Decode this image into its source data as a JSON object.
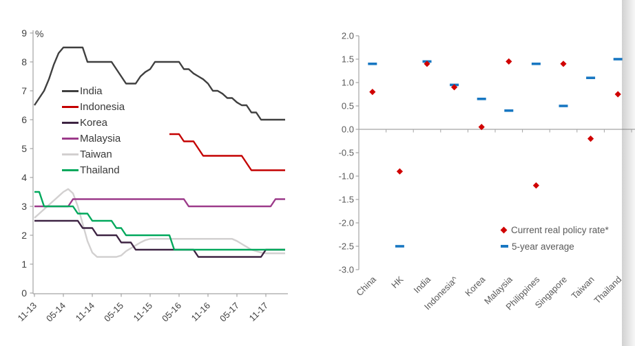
{
  "page": {
    "background": "#ffffff",
    "unit_label": "%"
  },
  "chart_data": [
    {
      "id": "policy-rates-by-month",
      "type": "line",
      "title": "",
      "ylabel": "%",
      "ylim": [
        0,
        9
      ],
      "yticks": [
        9,
        8,
        7,
        6,
        5,
        4,
        3,
        2,
        1,
        0
      ],
      "ytick_labels": [
        "9",
        "8",
        "7",
        "6",
        "5",
        "4",
        "3",
        "2",
        "1",
        "0"
      ],
      "grid": false,
      "legend_position": "upper-left-inside",
      "x_start_month": "2013-11",
      "x_tick_labels": [
        "11-13",
        "05-14",
        "11-14",
        "05-15",
        "11-15",
        "05-16",
        "11-16",
        "05-17",
        "11-17"
      ],
      "x_tick_indices": [
        0,
        6,
        12,
        18,
        24,
        30,
        36,
        42,
        48
      ],
      "draw_order": [
        4,
        0,
        1,
        2,
        3,
        5
      ],
      "series": [
        {
          "name": "India",
          "color": "#3f3f3f",
          "values": [
            6.5,
            6.75,
            7.0,
            7.4,
            7.9,
            8.3,
            8.5,
            8.5,
            8.5,
            8.5,
            8.5,
            8.0,
            8.0,
            8.0,
            8.0,
            8.0,
            8.0,
            7.75,
            7.5,
            7.25,
            7.25,
            7.25,
            7.5,
            7.65,
            7.75,
            8.0,
            8.0,
            8.0,
            8.0,
            8.0,
            8.0,
            7.75,
            7.75,
            7.6,
            7.5,
            7.4,
            7.25,
            7.0,
            7.0,
            6.9,
            6.75,
            6.75,
            6.6,
            6.5,
            6.5,
            6.25,
            6.25,
            6.0,
            6.0,
            6.0,
            6.0,
            6.0,
            6.0
          ]
        },
        {
          "name": "Indonesia",
          "color": "#c40000",
          "values": [
            null,
            null,
            null,
            null,
            null,
            null,
            null,
            null,
            null,
            null,
            null,
            null,
            null,
            null,
            null,
            null,
            null,
            null,
            null,
            null,
            null,
            null,
            null,
            null,
            null,
            null,
            null,
            null,
            5.5,
            5.5,
            5.5,
            5.25,
            5.25,
            5.25,
            5.0,
            4.75,
            4.75,
            4.75,
            4.75,
            4.75,
            4.75,
            4.75,
            4.75,
            4.75,
            4.5,
            4.25,
            4.25,
            4.25,
            4.25,
            4.25,
            4.25,
            4.25,
            4.25
          ]
        },
        {
          "name": "Korea",
          "color": "#3d2342",
          "values": [
            2.5,
            2.5,
            2.5,
            2.5,
            2.5,
            2.5,
            2.5,
            2.5,
            2.5,
            2.5,
            2.25,
            2.25,
            2.25,
            2.0,
            2.0,
            2.0,
            2.0,
            2.0,
            1.75,
            1.75,
            1.75,
            1.5,
            1.5,
            1.5,
            1.5,
            1.5,
            1.5,
            1.5,
            1.5,
            1.5,
            1.5,
            1.5,
            1.5,
            1.5,
            1.25,
            1.25,
            1.25,
            1.25,
            1.25,
            1.25,
            1.25,
            1.25,
            1.25,
            1.25,
            1.25,
            1.25,
            1.25,
            1.25,
            1.5,
            1.5,
            1.5,
            1.5,
            1.5
          ]
        },
        {
          "name": "Malaysia",
          "color": "#9c3a8a",
          "values": [
            3.0,
            3.0,
            3.0,
            3.0,
            3.0,
            3.0,
            3.0,
            3.0,
            3.25,
            3.25,
            3.25,
            3.25,
            3.25,
            3.25,
            3.25,
            3.25,
            3.25,
            3.25,
            3.25,
            3.25,
            3.25,
            3.25,
            3.25,
            3.25,
            3.25,
            3.25,
            3.25,
            3.25,
            3.25,
            3.25,
            3.25,
            3.25,
            3.0,
            3.0,
            3.0,
            3.0,
            3.0,
            3.0,
            3.0,
            3.0,
            3.0,
            3.0,
            3.0,
            3.0,
            3.0,
            3.0,
            3.0,
            3.0,
            3.0,
            3.0,
            3.25,
            3.25,
            3.25
          ]
        },
        {
          "name": "Taiwan",
          "color": "#d2d0d0",
          "values": [
            2.6,
            2.75,
            2.9,
            3.05,
            3.2,
            3.35,
            3.5,
            3.6,
            3.45,
            3.0,
            2.4,
            1.8,
            1.4,
            1.25,
            1.25,
            1.25,
            1.25,
            1.25,
            1.3,
            1.45,
            1.55,
            1.65,
            1.75,
            1.83,
            1.875,
            1.875,
            1.875,
            1.875,
            1.875,
            1.875,
            1.875,
            1.875,
            1.875,
            1.875,
            1.875,
            1.875,
            1.875,
            1.875,
            1.875,
            1.875,
            1.875,
            1.875,
            1.8,
            1.7,
            1.6,
            1.5,
            1.45,
            1.4,
            1.375,
            1.375,
            1.375,
            1.375,
            1.375
          ]
        },
        {
          "name": "Thailand",
          "color": "#00a85c",
          "values": [
            3.5,
            3.5,
            3.0,
            3.0,
            3.0,
            3.0,
            3.0,
            3.0,
            3.0,
            2.75,
            2.75,
            2.75,
            2.5,
            2.5,
            2.5,
            2.5,
            2.5,
            2.25,
            2.25,
            2.0,
            2.0,
            2.0,
            2.0,
            2.0,
            2.0,
            2.0,
            2.0,
            2.0,
            2.0,
            1.5,
            1.5,
            1.5,
            1.5,
            1.5,
            1.5,
            1.5,
            1.5,
            1.5,
            1.5,
            1.5,
            1.5,
            1.5,
            1.5,
            1.5,
            1.5,
            1.5,
            1.5,
            1.5,
            1.5,
            1.5,
            1.5,
            1.5,
            1.5
          ]
        }
      ]
    },
    {
      "id": "real-policy-rate-vs-average",
      "type": "scatter",
      "title": "",
      "categories": [
        "China",
        "HK",
        "India",
        "Indonesia^",
        "Korea",
        "Malaysia",
        "Philippines",
        "Singapore",
        "Taiwan",
        "Thailand"
      ],
      "ylim": [
        -3.0,
        2.0
      ],
      "yticks": [
        2.0,
        1.5,
        1.0,
        0.5,
        0.0,
        -0.5,
        -1.0,
        -1.5,
        -2.0,
        -2.5,
        -3.0
      ],
      "ytick_labels": [
        "2.0",
        "1.5",
        "1.0",
        "0.5",
        "0.0",
        "-0.5",
        "-1.0",
        "-1.5",
        "-2.0",
        "-2.5",
        "-3.0"
      ],
      "grid": false,
      "legend_position": "lower-right-inside",
      "series": [
        {
          "name": "Current real policy rate*",
          "marker": "diamond",
          "color": "#d00000",
          "values": [
            0.8,
            -0.9,
            1.4,
            0.9,
            0.05,
            1.45,
            -1.2,
            1.4,
            -0.2,
            0.75
          ]
        },
        {
          "name": "5-year average",
          "marker": "dash",
          "color": "#1877c2",
          "values": [
            1.4,
            -2.5,
            1.45,
            0.95,
            0.65,
            0.4,
            1.4,
            0.5,
            1.1,
            1.5
          ]
        }
      ]
    }
  ]
}
